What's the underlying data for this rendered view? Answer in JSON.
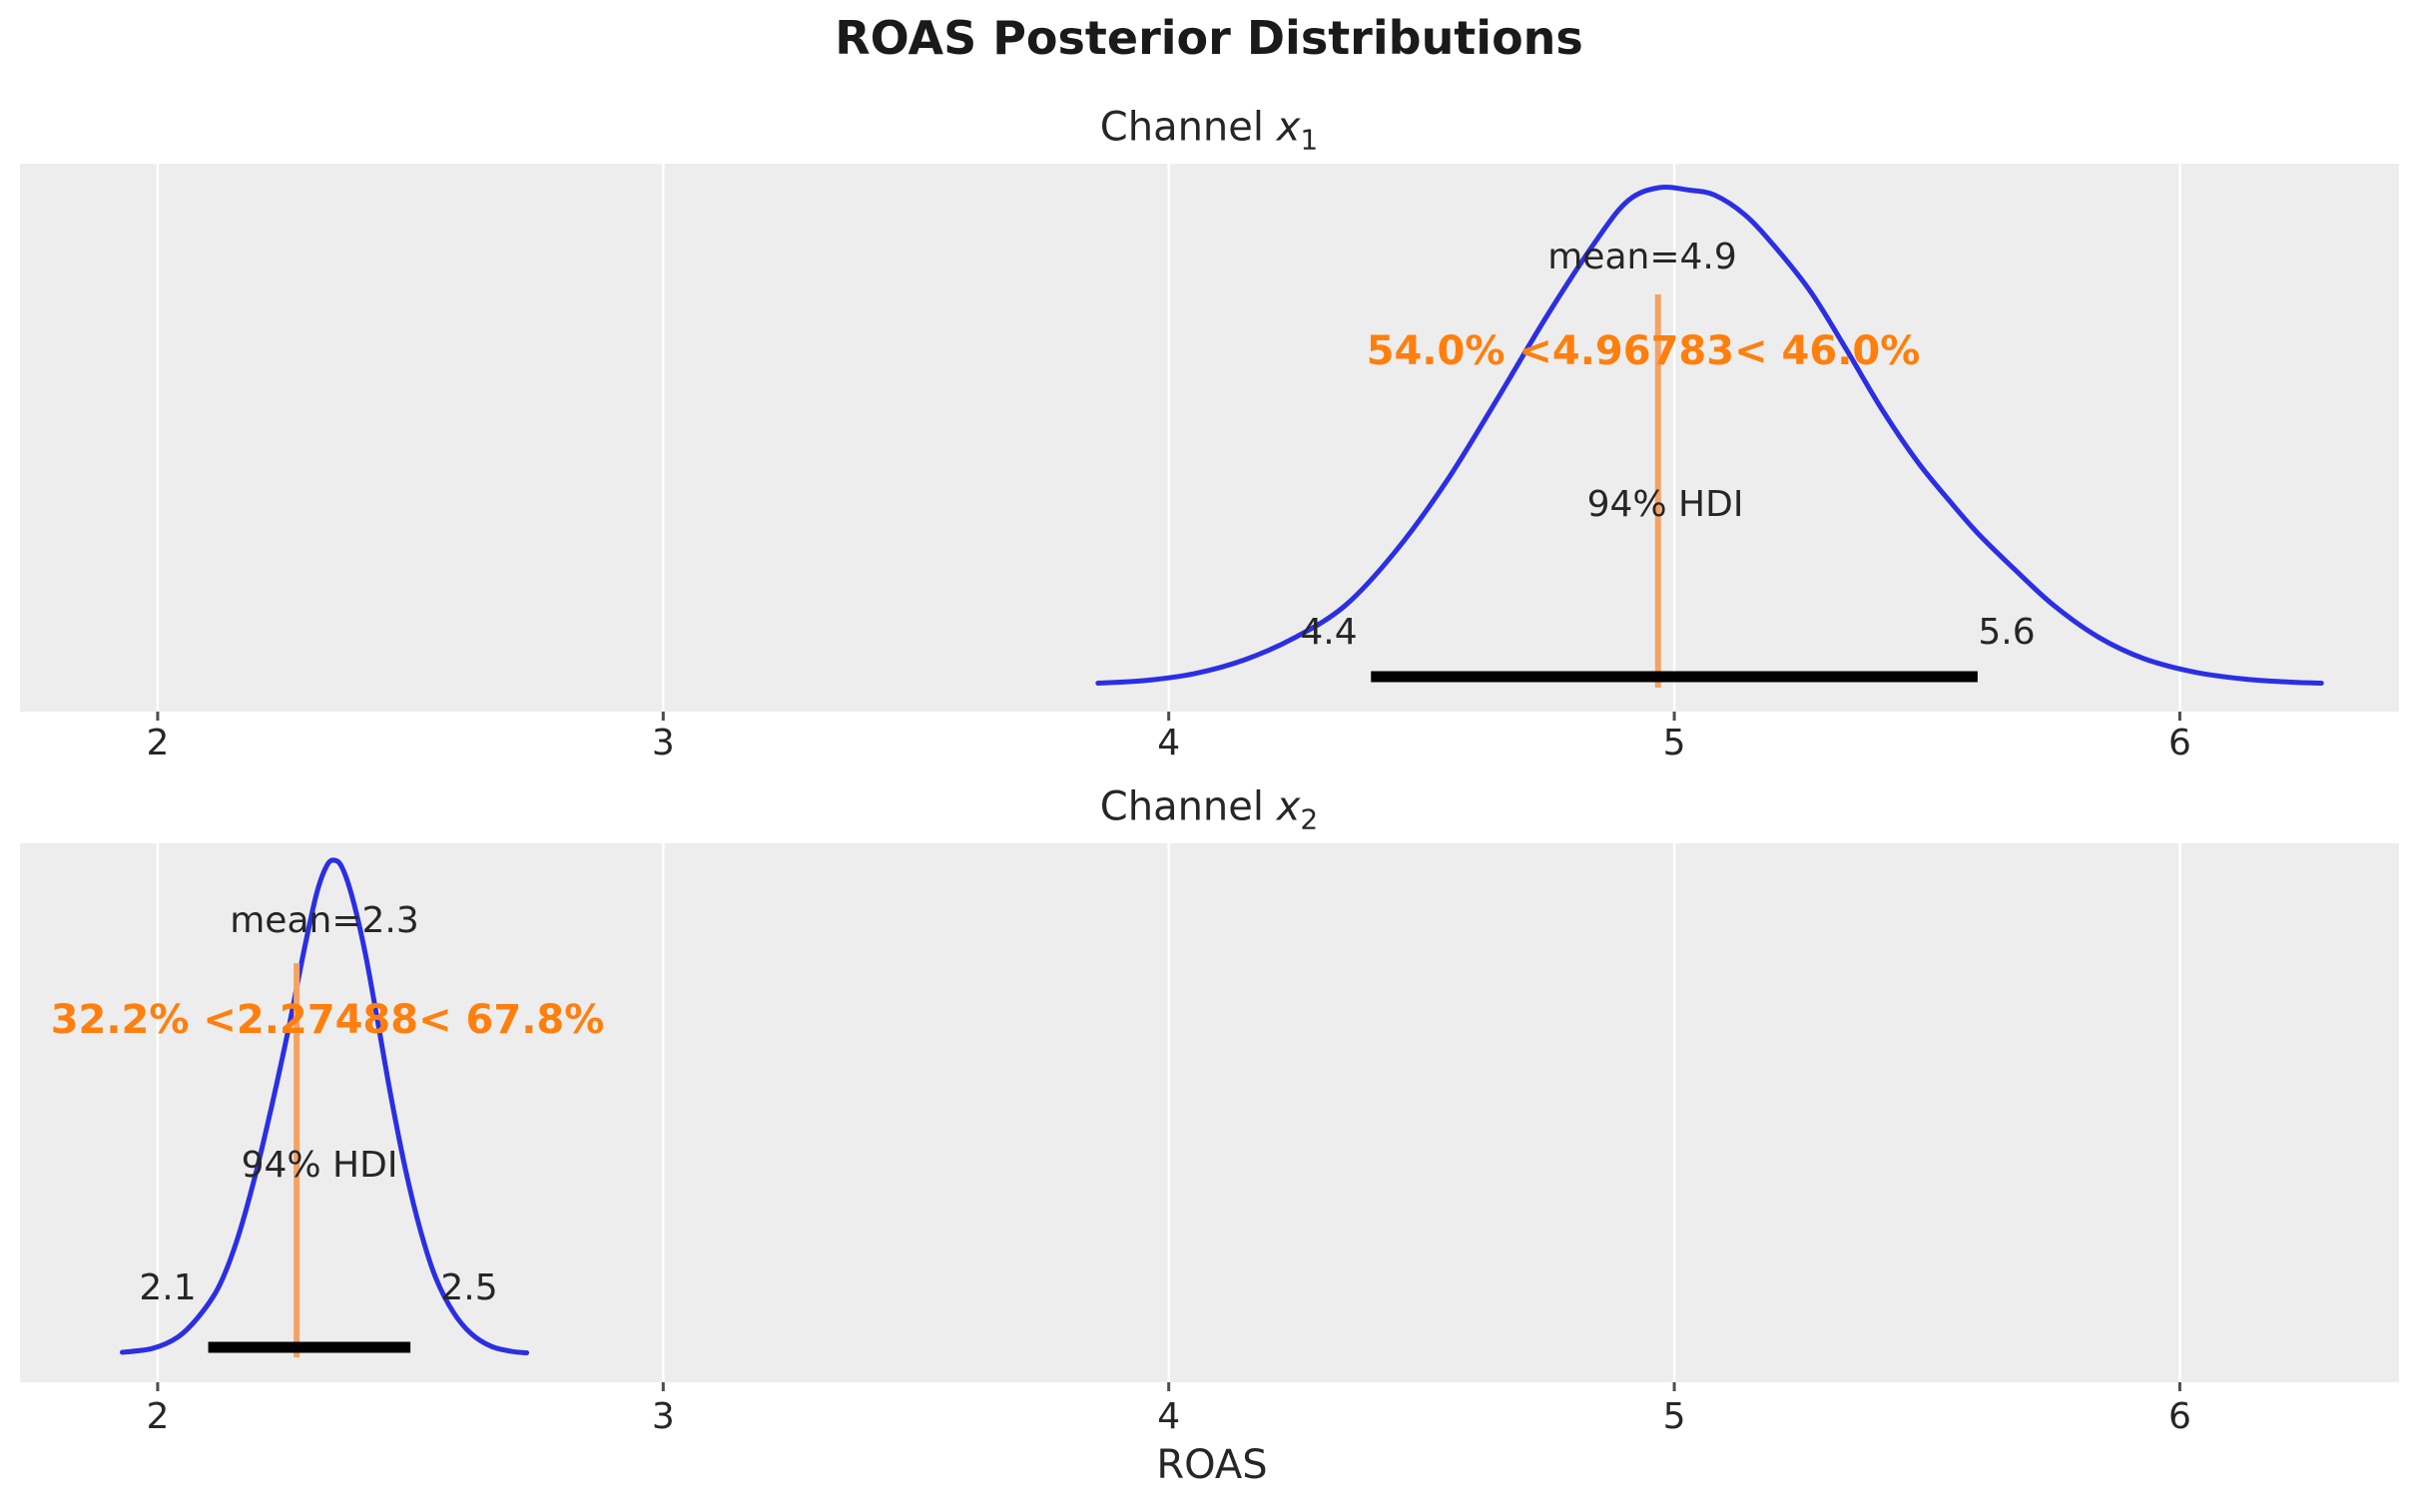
{
  "figure": {
    "title": "ROAS Posterior Distributions",
    "xlabel": "ROAS"
  },
  "colors": {
    "curve": "#2b2fe3",
    "ref_line": "#f5a263",
    "ref_text": "#ff7f0e",
    "hdi_line": "#000000",
    "panel_bg": "#ededed",
    "grid": "#ffffff",
    "text": "#262626",
    "tick_mark": "#4d4d4d"
  },
  "chart_data": [
    {
      "type": "kde",
      "channel_prefix": "Channel ",
      "channel_var": "x",
      "channel_index": "1",
      "mean": 4.9,
      "mean_label": "mean=4.9",
      "ref_value": 4.96783,
      "ref_label": "54.0% <4.96783< 46.0%",
      "pct_below": "54.0%",
      "pct_above": "46.0%",
      "hdi_text": "94% HDI",
      "hdi_interval": [
        4.4,
        5.6
      ],
      "hdi_low_label": "4.4",
      "hdi_high_label": "5.6",
      "x_ticks": [
        2,
        3,
        4,
        5,
        6
      ],
      "xlim": [
        1.7276,
        6.4336
      ],
      "kde_x": [
        3.86,
        3.95,
        4.05,
        4.15,
        4.25,
        4.35,
        4.45,
        4.55,
        4.65,
        4.75,
        4.85,
        4.91,
        4.97,
        5.03,
        5.08,
        5.14,
        5.2,
        5.27,
        5.34,
        5.41,
        5.48,
        5.54,
        5.6,
        5.67,
        5.75,
        5.84,
        5.93,
        6.03,
        6.13,
        6.22,
        6.28
      ],
      "kde_density": [
        0.003,
        0.008,
        0.022,
        0.05,
        0.095,
        0.16,
        0.27,
        0.41,
        0.575,
        0.745,
        0.9,
        0.975,
        1.0,
        0.995,
        0.985,
        0.945,
        0.88,
        0.79,
        0.675,
        0.555,
        0.45,
        0.375,
        0.305,
        0.235,
        0.16,
        0.095,
        0.052,
        0.025,
        0.011,
        0.005,
        0.003
      ]
    },
    {
      "type": "kde",
      "channel_prefix": "Channel ",
      "channel_var": "x",
      "channel_index": "2",
      "mean": 2.3,
      "mean_label": "mean=2.3",
      "ref_value": 2.27488,
      "ref_label": "32.2% <2.27488< 67.8%",
      "pct_below": "32.2%",
      "pct_above": "67.8%",
      "hdi_text": "94% HDI",
      "hdi_interval": [
        2.1,
        2.5
      ],
      "hdi_low_label": "2.1",
      "hdi_high_label": "2.5",
      "x_ticks": [
        2,
        3,
        4,
        5,
        6
      ],
      "xlim": [
        1.7276,
        6.4336
      ],
      "kde_x": [
        1.93,
        1.99,
        2.04,
        2.08,
        2.12,
        2.155,
        2.19,
        2.225,
        2.26,
        2.29,
        2.315,
        2.335,
        2.35,
        2.365,
        2.385,
        2.41,
        2.435,
        2.46,
        2.49,
        2.52,
        2.55,
        2.585,
        2.62,
        2.66,
        2.7,
        2.73
      ],
      "kde_density": [
        0.004,
        0.012,
        0.035,
        0.075,
        0.135,
        0.225,
        0.35,
        0.5,
        0.665,
        0.82,
        0.935,
        0.99,
        1.0,
        0.985,
        0.925,
        0.815,
        0.675,
        0.53,
        0.375,
        0.25,
        0.155,
        0.085,
        0.042,
        0.016,
        0.006,
        0.003
      ]
    }
  ]
}
